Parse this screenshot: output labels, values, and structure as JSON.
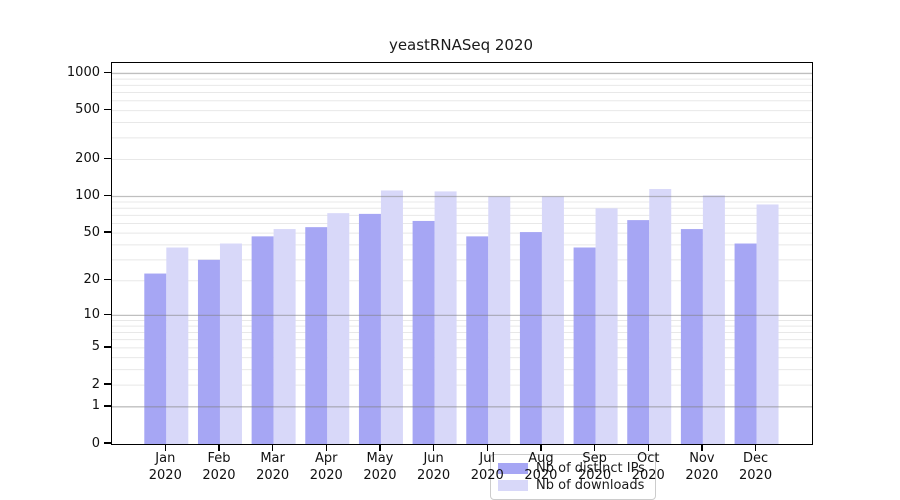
{
  "title": "yeastRNASeq 2020",
  "colors": {
    "distinct_ips_bar": "#a6a6f4",
    "downloads_bar": "#d8d8f9",
    "major_grid": "#808080",
    "minor_grid": "#e8e8e8",
    "axis": "#000000"
  },
  "legend": {
    "items": [
      {
        "label": "Nb of distinct IPs",
        "color": "#a6a6f4"
      },
      {
        "label": "Nb of downloads",
        "color": "#d8d8f9"
      }
    ]
  },
  "x_axis": {
    "months": [
      "Jan",
      "Feb",
      "Mar",
      "Apr",
      "May",
      "Jun",
      "Jul",
      "Aug",
      "Sep",
      "Oct",
      "Nov",
      "Dec"
    ],
    "year": "2020"
  },
  "y_axis": {
    "tick_values": [
      0,
      1,
      2,
      5,
      10,
      20,
      50,
      100,
      200,
      500,
      1000
    ],
    "tick_labels": [
      "0",
      "1",
      "2",
      "5",
      "10",
      "20",
      "50",
      "100",
      "200",
      "500",
      "1000"
    ]
  },
  "chart_data": {
    "type": "bar",
    "title": "yeastRNASeq 2020",
    "categories": [
      "Jan 2020",
      "Feb 2020",
      "Mar 2020",
      "Apr 2020",
      "May 2020",
      "Jun 2020",
      "Jul 2020",
      "Aug 2020",
      "Sep 2020",
      "Oct 2020",
      "Nov 2020",
      "Dec 2020"
    ],
    "series": [
      {
        "name": "Nb of distinct IPs",
        "color": "#a6a6f4",
        "values": [
          23,
          30,
          47,
          56,
          72,
          63,
          47,
          51,
          38,
          64,
          54,
          41
        ]
      },
      {
        "name": "Nb of downloads",
        "color": "#d8d8f9",
        "values": [
          38,
          41,
          54,
          73,
          112,
          110,
          100,
          100,
          80,
          115,
          102,
          86
        ]
      }
    ],
    "xlabel": "",
    "ylabel": "",
    "y_scale": "log10(value+1)",
    "y_ticks": [
      0,
      1,
      2,
      5,
      10,
      20,
      50,
      100,
      200,
      500,
      1000
    ],
    "ylim_top": 1200,
    "grid": true,
    "major_grid_at": [
      1,
      10,
      100,
      1000
    ],
    "legend_position": "lower center"
  }
}
